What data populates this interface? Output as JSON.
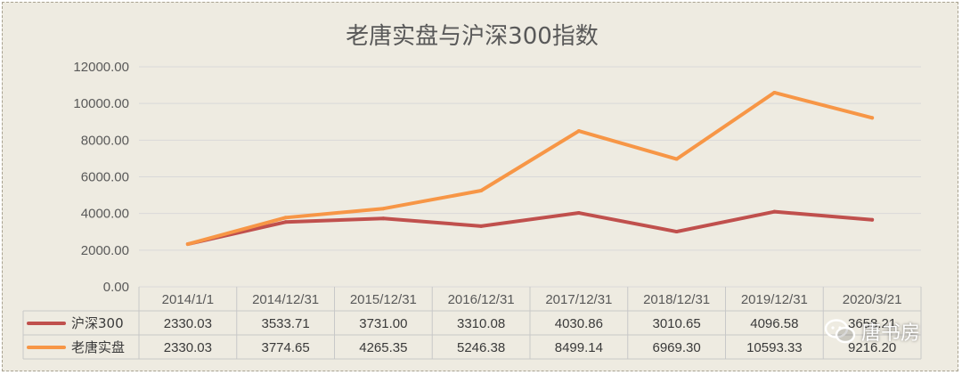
{
  "chart_data": {
    "type": "line",
    "title": "老唐实盘与沪深300指数",
    "categories": [
      "2014/1/1",
      "2014/12/31",
      "2015/12/31",
      "2016/12/31",
      "2017/12/31",
      "2018/12/31",
      "2019/12/31",
      "2020/3/21"
    ],
    "series": [
      {
        "name": "沪深300",
        "color": "#c0504d",
        "values": [
          2330.03,
          3533.71,
          3731.0,
          3310.08,
          4030.86,
          3010.65,
          4096.58,
          3658.21
        ],
        "labels": [
          "2330.03",
          "3533.71",
          "3731.00",
          "3310.08",
          "4030.86",
          "3010.65",
          "4096.58",
          "3658.21"
        ]
      },
      {
        "name": "老唐实盘",
        "color": "#f79646",
        "values": [
          2330.03,
          3774.65,
          4265.35,
          5246.38,
          8499.14,
          6969.3,
          10593.33,
          9216.2
        ],
        "labels": [
          "2330.03",
          "3774.65",
          "4265.35",
          "5246.38",
          "8499.14",
          "6969.30",
          "10593.33",
          "9216.20"
        ]
      }
    ],
    "ylim": [
      0,
      12000
    ],
    "yticks": [
      "0.00",
      "2000.00",
      "4000.00",
      "6000.00",
      "8000.00",
      "10000.00",
      "12000.00"
    ],
    "grid": true,
    "legend": "data-table"
  },
  "watermark": {
    "text": "唐书房",
    "icon": "wechat-icon"
  }
}
